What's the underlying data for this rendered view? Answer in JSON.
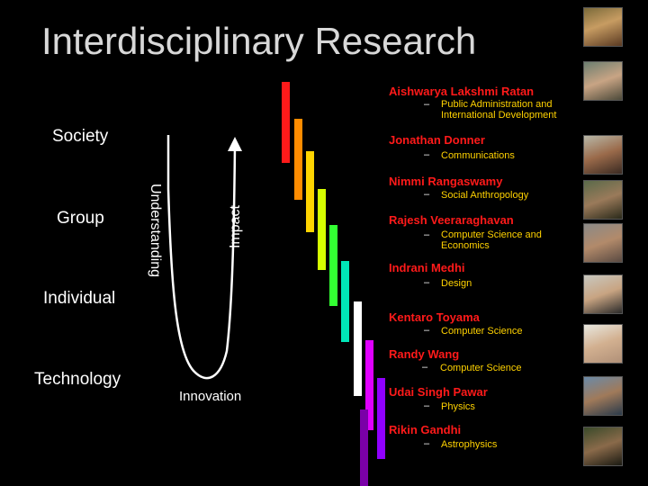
{
  "title": "Interdisciplinary Research",
  "levels": {
    "society": "Society",
    "group": "Group",
    "individual": "Individual",
    "technology": "Technology"
  },
  "axes": {
    "understanding": "Understanding",
    "impact": "Impact"
  },
  "innovation_label": "Innovation",
  "people": [
    {
      "name": "Aishwarya Lakshmi Ratan",
      "field": "Public Administration and International Development"
    },
    {
      "name": "Jonathan Donner",
      "field": "Communications"
    },
    {
      "name": "Nimmi Rangaswamy",
      "field": "Social Anthropology"
    },
    {
      "name": "Rajesh Veeraraghavan",
      "field": "Computer Science and Economics"
    },
    {
      "name": "Indrani Medhi",
      "field": "Design"
    },
    {
      "name": "Kentaro Toyama",
      "field": "Computer Science"
    },
    {
      "name": "Randy Wang",
      "field": "Computer Science"
    },
    {
      "name": "Udai Singh Pawar",
      "field": "Physics"
    },
    {
      "name": "Rikin Gandhi",
      "field": "Astrophysics"
    }
  ],
  "colors": {
    "title": "#d8d8d8",
    "name": "#ff1a1a",
    "field": "#ffd200",
    "bars": [
      "#ff1a1a",
      "#ff8c00",
      "#ffd400",
      "#d6ff00",
      "#33ff33",
      "#00e6b8",
      "#ffffff",
      "#e000ff",
      "#9000ff",
      "#7a00a8"
    ]
  }
}
